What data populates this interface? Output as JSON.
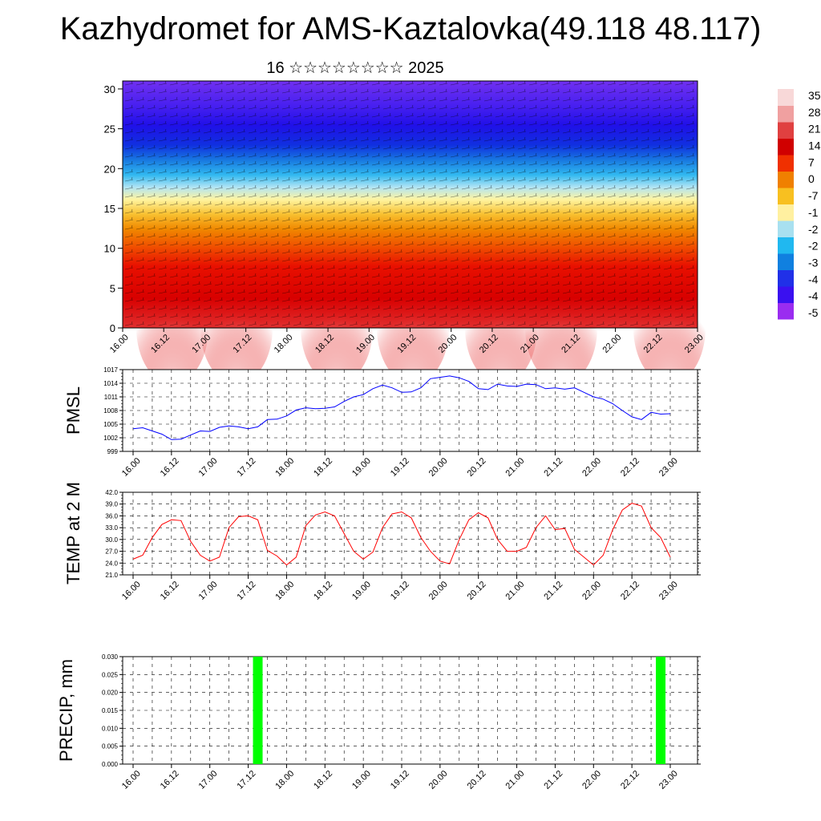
{
  "header": {
    "title": "Kazhydromet for AMS-Kaztalovka(49.118 48.117)",
    "subtitle": "16 ☆☆☆☆☆☆☆☆ 2025"
  },
  "time_labels": [
    "16.00",
    "16.12",
    "17.00",
    "17.12",
    "18.00",
    "18.12",
    "19.00",
    "19.12",
    "20.00",
    "20.12",
    "21.00",
    "21.12",
    "22.00",
    "22.12",
    "23.00"
  ],
  "chart_data": [
    {
      "type": "heatmap",
      "name": "vertical-profile",
      "y_ticks": [
        "0",
        "5",
        "10",
        "15",
        "20",
        "25",
        "30"
      ],
      "ylim": [
        0,
        31
      ],
      "colorbar_labels": [
        "35",
        "28",
        "21",
        "14",
        "7",
        "0",
        "-7",
        "-1",
        "-2",
        "-2",
        "-3",
        "-4",
        "-4",
        "-5"
      ],
      "colorbar_colors": [
        "#9a2cf0",
        "#3a10f0",
        "#2030e8",
        "#1080e0",
        "#20b8f0",
        "#a8e0f0",
        "#fff0a0",
        "#f8c020",
        "#f08000",
        "#f03000",
        "#d00000",
        "#e04040",
        "#f0a0a0",
        "#f8d8d8"
      ]
    },
    {
      "type": "line",
      "ylabel": "PMSL",
      "y_ticks": [
        "999",
        "1002",
        "1005",
        "1008",
        "1011",
        "1014",
        "1017"
      ],
      "ylim": [
        999,
        1017
      ],
      "color": "#0000ff",
      "values": [
        1004.0,
        1004.2,
        1003.5,
        1002.8,
        1001.6,
        1001.7,
        1002.6,
        1003.5,
        1003.4,
        1004.3,
        1004.6,
        1004.4,
        1004.0,
        1004.4,
        1006.0,
        1006.1,
        1006.8,
        1008.1,
        1008.6,
        1008.4,
        1008.5,
        1008.8,
        1010.0,
        1011.0,
        1011.5,
        1012.8,
        1013.6,
        1013.0,
        1012.0,
        1012.1,
        1013.0,
        1015.0,
        1015.3,
        1015.6,
        1015.2,
        1014.4,
        1012.8,
        1012.6,
        1013.8,
        1013.4,
        1013.3,
        1013.8,
        1013.7,
        1012.8,
        1013.0,
        1012.7,
        1013.0,
        1012.0,
        1011.0,
        1010.5,
        1009.5,
        1008.0,
        1006.6,
        1006.0,
        1007.6,
        1007.2,
        1007.3
      ]
    },
    {
      "type": "line",
      "ylabel": "TEMP at 2 M",
      "y_ticks": [
        "21.0",
        "24.0",
        "27.0",
        "30.0",
        "33.0",
        "36.0",
        "39.0",
        "42.0"
      ],
      "ylim": [
        21,
        42
      ],
      "color": "#ff0000",
      "values": [
        25.0,
        26.0,
        30.5,
        33.8,
        35.0,
        34.8,
        29.5,
        26.0,
        24.5,
        25.5,
        33.0,
        35.8,
        36.0,
        35.0,
        27.2,
        25.8,
        23.5,
        25.5,
        33.5,
        36.2,
        37.0,
        36.0,
        31.5,
        27.0,
        25.0,
        26.8,
        33.0,
        36.5,
        37.0,
        35.5,
        30.5,
        27.0,
        24.5,
        23.8,
        30.0,
        35.0,
        36.8,
        35.5,
        30.0,
        27.0,
        27.0,
        28.0,
        33.0,
        36.0,
        32.5,
        32.8,
        27.5,
        25.5,
        23.5,
        26.0,
        32.5,
        37.5,
        39.2,
        38.5,
        33.0,
        30.5,
        25.5
      ]
    },
    {
      "type": "bar",
      "ylabel": "PRECIP, mm",
      "y_ticks": [
        "0.000",
        "0.005",
        "0.010",
        "0.015",
        "0.020",
        "0.025",
        "0.030"
      ],
      "ylim": [
        0,
        0.03
      ],
      "color": "#00ff00",
      "bars": [
        {
          "x": "17.12",
          "offset_hours": 3,
          "value": 0.03
        },
        {
          "x": "22.12",
          "offset_hours": 9,
          "value": 0.03
        }
      ]
    }
  ]
}
